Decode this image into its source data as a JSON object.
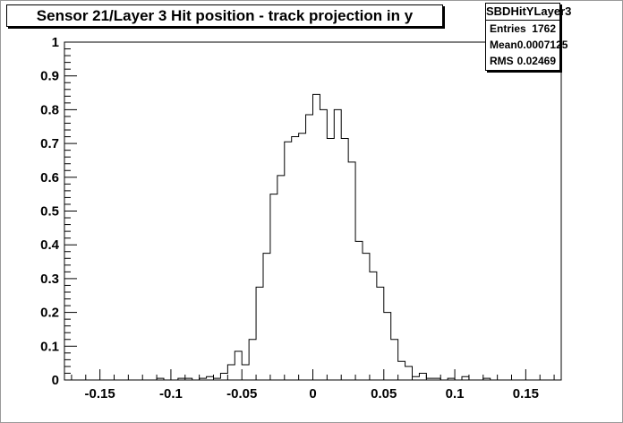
{
  "title": "Sensor 21/Layer 3 Hit position - track projection in y",
  "stats": {
    "name": "SBDHitYLayer3",
    "rows": [
      {
        "label": "Entries",
        "value": "1762"
      },
      {
        "label": "Mean",
        "value": "0.0007125"
      },
      {
        "label": "RMS",
        "value": "0.02469"
      }
    ]
  },
  "chart_data": {
    "type": "bar",
    "style": "step-histogram",
    "title": "Sensor 21/Layer 3 Hit position - track projection in y",
    "xlabel": "",
    "ylabel": "",
    "xlim": [
      -0.175,
      0.175
    ],
    "ylim": [
      0,
      1
    ],
    "bin_width": 0.005,
    "bin_start": -0.175,
    "x_ticks": [
      -0.15,
      -0.1,
      -0.05,
      0,
      0.05,
      0.1,
      0.15
    ],
    "x_tick_labels": [
      "-0.15",
      "-0.1",
      "-0.05",
      "0",
      "0.05",
      "0.1",
      "0.15"
    ],
    "y_ticks": [
      0,
      0.1,
      0.2,
      0.3,
      0.4,
      0.5,
      0.6,
      0.7,
      0.8,
      0.9,
      1
    ],
    "y_tick_labels": [
      "0",
      "0.1",
      "0.2",
      "0.3",
      "0.4",
      "0.5",
      "0.6",
      "0.7",
      "0.8",
      "0.9",
      "1"
    ],
    "values": [
      0,
      0,
      0,
      0,
      0,
      0,
      0,
      0,
      0,
      0,
      0,
      0,
      0,
      0.005,
      0,
      0,
      0.005,
      0.005,
      0,
      0.005,
      0.01,
      0.005,
      0.02,
      0.045,
      0.085,
      0.045,
      0.12,
      0.275,
      0.375,
      0.55,
      0.605,
      0.705,
      0.72,
      0.73,
      0.785,
      0.845,
      0.8,
      0.715,
      0.8,
      0.715,
      0.645,
      0.41,
      0.375,
      0.32,
      0.275,
      0.2,
      0.12,
      0.055,
      0.04,
      0.01,
      0.02,
      0.005,
      0.005,
      0,
      0.005,
      0,
      0.01,
      0,
      0,
      0.005,
      0,
      0,
      0,
      0,
      0,
      0,
      0,
      0,
      0,
      0
    ],
    "grid": false,
    "legend": "top-right"
  }
}
